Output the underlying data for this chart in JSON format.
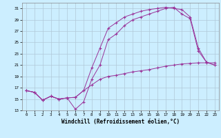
{
  "xlabel": "Windchill (Refroidissement éolien,°C)",
  "background_color": "#cceeff",
  "grid_color": "#b0c8d8",
  "line_color": "#993399",
  "xlim": [
    -0.5,
    23.5
  ],
  "ylim": [
    13,
    32
  ],
  "xticks": [
    0,
    1,
    2,
    3,
    4,
    5,
    6,
    7,
    8,
    9,
    10,
    11,
    12,
    13,
    14,
    15,
    16,
    17,
    18,
    19,
    20,
    21,
    22,
    23
  ],
  "yticks": [
    13,
    15,
    17,
    19,
    21,
    23,
    25,
    27,
    29,
    31
  ],
  "curve1_x": [
    0,
    1,
    2,
    3,
    4,
    5,
    6,
    7,
    8,
    9,
    10,
    11,
    12,
    13,
    14,
    15,
    16,
    17,
    18,
    19,
    20,
    21,
    22,
    23
  ],
  "curve1_y": [
    16.5,
    16.2,
    14.8,
    15.5,
    15.0,
    15.2,
    15.3,
    16.5,
    17.5,
    18.5,
    19.0,
    19.2,
    19.5,
    19.8,
    20.0,
    20.2,
    20.5,
    20.8,
    21.0,
    21.2,
    21.3,
    21.4,
    21.4,
    21.4
  ],
  "curve2_x": [
    0,
    1,
    2,
    3,
    4,
    5,
    6,
    7,
    8,
    9,
    10,
    11,
    12,
    13,
    14,
    15,
    16,
    17,
    18,
    19,
    20,
    21,
    22,
    23
  ],
  "curve2_y": [
    16.5,
    16.2,
    14.8,
    15.5,
    15.0,
    15.2,
    13.2,
    14.5,
    18.5,
    21.0,
    25.5,
    26.5,
    28.0,
    29.0,
    29.5,
    30.0,
    30.5,
    31.0,
    31.2,
    30.0,
    29.2,
    23.5,
    21.5,
    21.0
  ],
  "curve3_x": [
    0,
    1,
    2,
    3,
    4,
    5,
    6,
    7,
    8,
    9,
    10,
    11,
    12,
    13,
    14,
    15,
    16,
    17,
    18,
    19,
    20,
    21,
    22,
    23
  ],
  "curve3_y": [
    16.5,
    16.2,
    14.8,
    15.5,
    15.0,
    15.2,
    15.3,
    16.5,
    20.5,
    24.0,
    27.5,
    28.5,
    29.5,
    30.0,
    30.5,
    30.8,
    31.0,
    31.2,
    31.0,
    30.8,
    29.5,
    24.0,
    21.5,
    21.0
  ]
}
